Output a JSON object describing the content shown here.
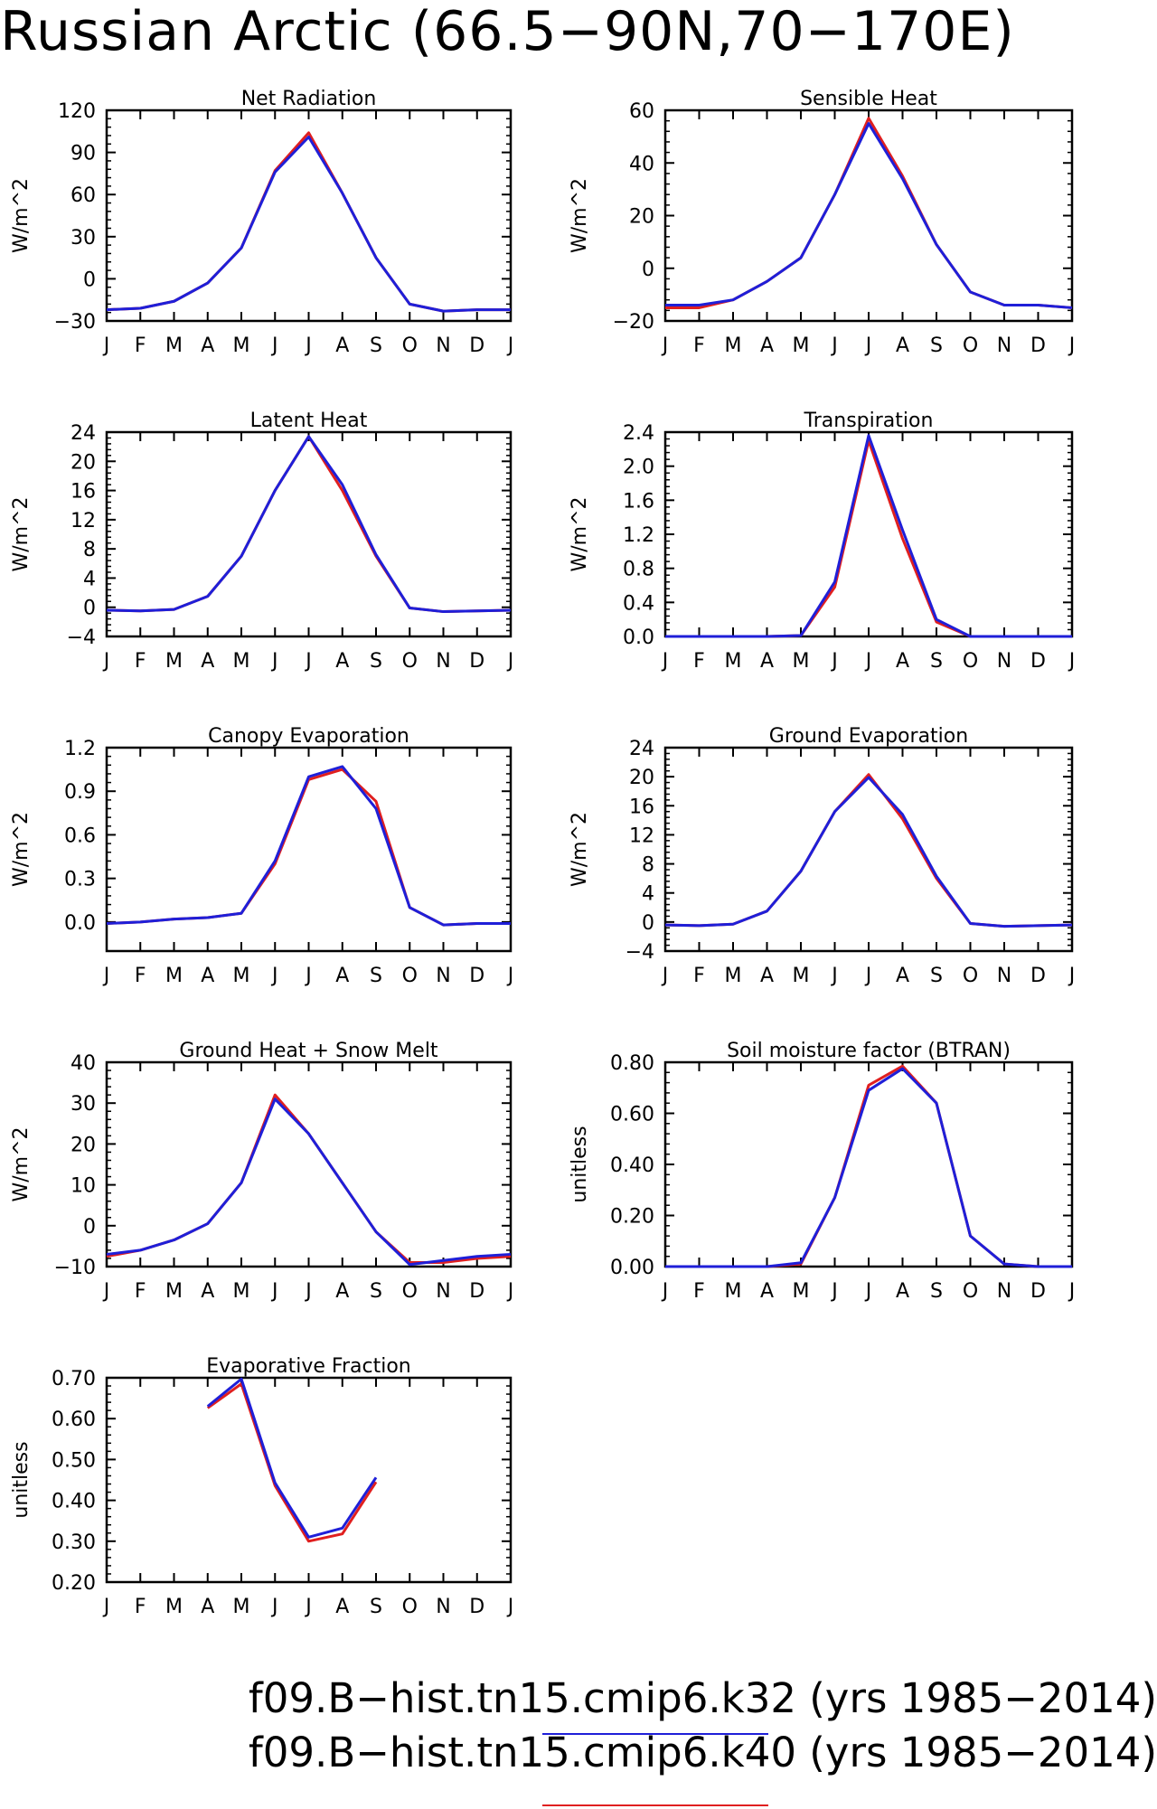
{
  "title": "Russian Arctic (66.5−90N,70−170E)",
  "colors": {
    "k32": "#1f1fd8",
    "k40": "#e01f1f"
  },
  "legend": {
    "k32": "f09.B−hist.tn15.cmip6.k32 (yrs 1985−2014)",
    "k40": "f09.B−hist.tn15.cmip6.k40 (yrs 1985−2014)"
  },
  "chart_data": [
    {
      "type": "line",
      "title": "Net Radiation",
      "ylabel": "W/m^2",
      "categories": [
        "J",
        "F",
        "M",
        "A",
        "M",
        "J",
        "J",
        "A",
        "S",
        "O",
        "N",
        "D",
        "J"
      ],
      "ylim": [
        -30,
        120
      ],
      "yticks": [
        "-30",
        "0",
        "30",
        "60",
        "90",
        "120"
      ],
      "series": [
        {
          "key": "k40",
          "values": [
            -22,
            -21,
            -16,
            -3,
            22,
            77,
            104,
            61,
            15,
            -18,
            -23,
            -22,
            -22
          ]
        },
        {
          "key": "k32",
          "values": [
            -22,
            -21,
            -16,
            -3,
            22,
            76,
            101,
            61,
            15,
            -18,
            -23,
            -22,
            -22
          ]
        }
      ]
    },
    {
      "type": "line",
      "title": "Sensible Heat",
      "ylabel": "W/m^2",
      "categories": [
        "J",
        "F",
        "M",
        "A",
        "M",
        "J",
        "J",
        "A",
        "S",
        "O",
        "N",
        "D",
        "J"
      ],
      "ylim": [
        -20,
        60
      ],
      "yticks": [
        "-20",
        "0",
        "20",
        "40",
        "60"
      ],
      "series": [
        {
          "key": "k40",
          "values": [
            -15,
            -15,
            -12,
            -5,
            4,
            28,
            57,
            35,
            9,
            -9,
            -14,
            -14,
            -15
          ]
        },
        {
          "key": "k32",
          "values": [
            -14,
            -14,
            -12,
            -5,
            4,
            28,
            55,
            34,
            9,
            -9,
            -14,
            -14,
            -15
          ]
        }
      ]
    },
    {
      "type": "line",
      "title": "Latent Heat",
      "ylabel": "W/m^2",
      "categories": [
        "J",
        "F",
        "M",
        "A",
        "M",
        "J",
        "J",
        "A",
        "S",
        "O",
        "N",
        "D",
        "J"
      ],
      "ylim": [
        -4,
        24
      ],
      "yticks": [
        "-4",
        "0",
        "4",
        "8",
        "12",
        "16",
        "20",
        "24"
      ],
      "series": [
        {
          "key": "k40",
          "values": [
            -0.4,
            -0.5,
            -0.3,
            1.5,
            7,
            16,
            23.4,
            16,
            7,
            -0.1,
            -0.6,
            -0.5,
            -0.4
          ]
        },
        {
          "key": "k32",
          "values": [
            -0.4,
            -0.5,
            -0.3,
            1.5,
            7,
            16,
            23.4,
            16.8,
            7.2,
            -0.1,
            -0.6,
            -0.5,
            -0.4
          ]
        }
      ]
    },
    {
      "type": "line",
      "title": "Transpiration",
      "ylabel": "W/m^2",
      "categories": [
        "J",
        "F",
        "M",
        "A",
        "M",
        "J",
        "J",
        "A",
        "S",
        "O",
        "N",
        "D",
        "J"
      ],
      "ylim": [
        0,
        2.4
      ],
      "yticks": [
        "0.0",
        "0.4",
        "0.8",
        "1.2",
        "1.6",
        "2.0",
        "2.4"
      ],
      "series": [
        {
          "key": "k40",
          "values": [
            0,
            0,
            0,
            0,
            0.01,
            0.58,
            2.3,
            1.15,
            0.17,
            0,
            0,
            0,
            0
          ]
        },
        {
          "key": "k32",
          "values": [
            0,
            0,
            0,
            0,
            0.01,
            0.64,
            2.36,
            1.25,
            0.2,
            0,
            0,
            0,
            0
          ]
        }
      ]
    },
    {
      "type": "line",
      "title": "Canopy Evaporation",
      "ylabel": "W/m^2",
      "categories": [
        "J",
        "F",
        "M",
        "A",
        "M",
        "J",
        "J",
        "A",
        "S",
        "O",
        "N",
        "D",
        "J"
      ],
      "ylim": [
        -0.2,
        1.2
      ],
      "yticks": [
        "0.0",
        "0.3",
        "0.6",
        "0.9",
        "1.2"
      ],
      "series": [
        {
          "key": "k40",
          "values": [
            -0.01,
            0,
            0.02,
            0.03,
            0.06,
            0.4,
            0.98,
            1.05,
            0.83,
            0.1,
            -0.02,
            -0.01,
            -0.01
          ]
        },
        {
          "key": "k32",
          "values": [
            -0.01,
            0,
            0.02,
            0.03,
            0.06,
            0.42,
            1,
            1.07,
            0.78,
            0.1,
            -0.02,
            -0.01,
            -0.01
          ]
        }
      ]
    },
    {
      "type": "line",
      "title": "Ground Evaporation",
      "ylabel": "W/m^2",
      "categories": [
        "J",
        "F",
        "M",
        "A",
        "M",
        "J",
        "J",
        "A",
        "S",
        "O",
        "N",
        "D",
        "J"
      ],
      "ylim": [
        -4,
        24
      ],
      "yticks": [
        "-4",
        "0",
        "4",
        "8",
        "12",
        "16",
        "20",
        "24"
      ],
      "series": [
        {
          "key": "k40",
          "values": [
            -0.4,
            -0.5,
            -0.3,
            1.5,
            7,
            15.2,
            20.3,
            14.2,
            6,
            -0.2,
            -0.6,
            -0.5,
            -0.4
          ]
        },
        {
          "key": "k32",
          "values": [
            -0.4,
            -0.5,
            -0.3,
            1.5,
            7,
            15.2,
            19.9,
            14.8,
            6.3,
            -0.2,
            -0.6,
            -0.5,
            -0.4
          ]
        }
      ]
    },
    {
      "type": "line",
      "title": "Ground Heat + Snow Melt",
      "ylabel": "W/m^2",
      "categories": [
        "J",
        "F",
        "M",
        "A",
        "M",
        "J",
        "J",
        "A",
        "S",
        "O",
        "N",
        "D",
        "J"
      ],
      "ylim": [
        -10,
        40
      ],
      "yticks": [
        "-10",
        "0",
        "10",
        "20",
        "30",
        "40"
      ],
      "series": [
        {
          "key": "k40",
          "values": [
            -7.5,
            -6,
            -3.5,
            0.5,
            10.5,
            32,
            22.5,
            10.5,
            -1.5,
            -9,
            -9,
            -8,
            -7.5
          ]
        },
        {
          "key": "k32",
          "values": [
            -7,
            -6,
            -3.5,
            0.5,
            10.5,
            31,
            22.5,
            10.5,
            -1.5,
            -9.5,
            -8.5,
            -7.5,
            -7
          ]
        }
      ]
    },
    {
      "type": "line",
      "title": "Soil moisture factor (BTRAN)",
      "ylabel": "unitless",
      "categories": [
        "J",
        "F",
        "M",
        "A",
        "M",
        "J",
        "J",
        "A",
        "S",
        "O",
        "N",
        "D",
        "J"
      ],
      "ylim": [
        0,
        0.8
      ],
      "yticks": [
        "0.00",
        "0.20",
        "0.40",
        "0.60",
        "0.80"
      ],
      "series": [
        {
          "key": "k40",
          "values": [
            0,
            0,
            0,
            0,
            0.01,
            0.27,
            0.71,
            0.785,
            0.64,
            0.12,
            0.01,
            0,
            0
          ]
        },
        {
          "key": "k32",
          "values": [
            0,
            0,
            0,
            0,
            0.015,
            0.27,
            0.69,
            0.775,
            0.64,
            0.12,
            0.01,
            0,
            0
          ]
        }
      ]
    },
    {
      "type": "line",
      "title": "Evaporative Fraction",
      "ylabel": "unitless",
      "categories": [
        "J",
        "F",
        "M",
        "A",
        "M",
        "J",
        "J",
        "A",
        "S",
        "O",
        "N",
        "D",
        "J"
      ],
      "ylim": [
        0.2,
        0.7
      ],
      "yticks": [
        "0.20",
        "0.30",
        "0.40",
        "0.50",
        "0.60",
        "0.70"
      ],
      "series": [
        {
          "key": "k40",
          "values": [
            null,
            null,
            null,
            0.626,
            0.685,
            0.436,
            0.3,
            0.318,
            0.445,
            null,
            null,
            null,
            null
          ]
        },
        {
          "key": "k32",
          "values": [
            null,
            null,
            null,
            0.63,
            0.697,
            0.443,
            0.31,
            0.332,
            0.456,
            null,
            null,
            null,
            null
          ]
        }
      ]
    }
  ]
}
